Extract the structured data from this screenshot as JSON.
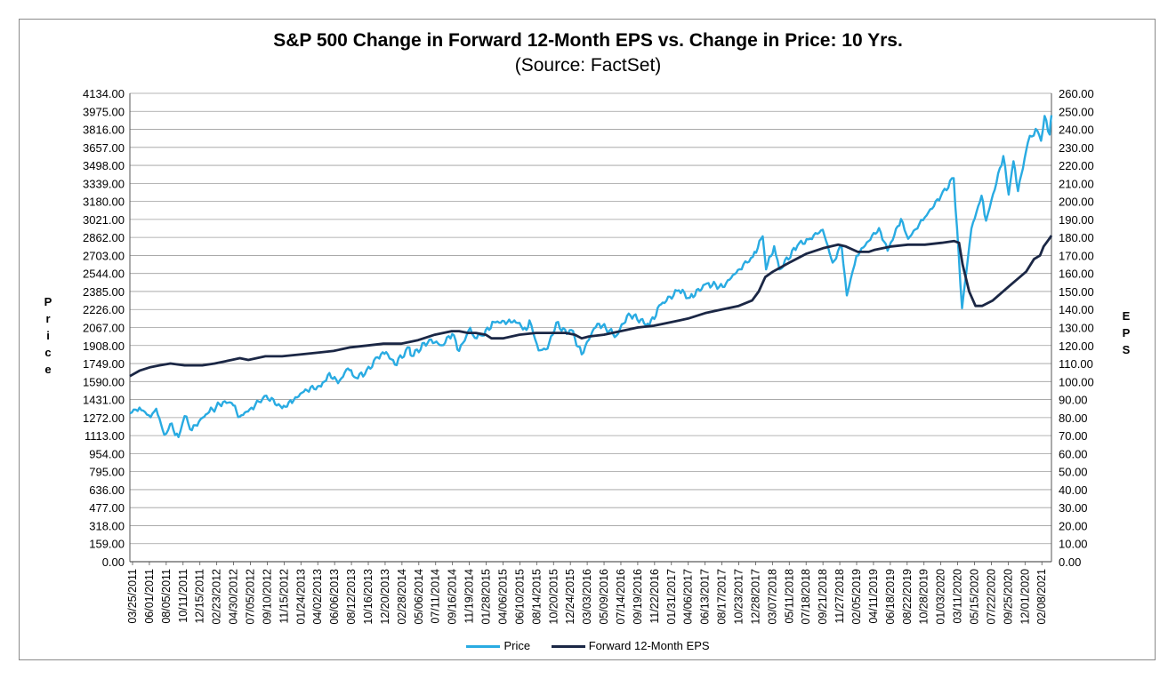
{
  "chart_data": {
    "type": "line",
    "title": "S&P 500 Change in Forward 12-Month EPS vs. Change in Price: 10 Yrs.",
    "subtitle": "(Source: FactSet)",
    "y_left": {
      "label": "Price",
      "ylim": [
        0,
        4134
      ],
      "ticks": [
        "0.00",
        "159.00",
        "318.00",
        "477.00",
        "636.00",
        "795.00",
        "954.00",
        "1113.00",
        "1272.00",
        "1431.00",
        "1590.00",
        "1749.00",
        "1908.00",
        "2067.00",
        "2226.00",
        "2385.00",
        "2544.00",
        "2703.00",
        "2862.00",
        "3021.00",
        "3180.00",
        "3339.00",
        "3498.00",
        "3657.00",
        "3816.00",
        "3975.00",
        "4134.00"
      ]
    },
    "y_right": {
      "label": "EPS",
      "ylim": [
        0,
        260
      ],
      "ticks": [
        "0.00",
        "10.00",
        "20.00",
        "30.00",
        "40.00",
        "50.00",
        "60.00",
        "70.00",
        "80.00",
        "90.00",
        "100.00",
        "110.00",
        "120.00",
        "130.00",
        "140.00",
        "150.00",
        "160.00",
        "170.00",
        "180.00",
        "190.00",
        "200.00",
        "210.00",
        "220.00",
        "230.00",
        "240.00",
        "250.00",
        "260.00"
      ]
    },
    "x_tick_labels": [
      "03/25/2011",
      "06/01/2011",
      "08/05/2011",
      "10/11/2011",
      "12/15/2011",
      "02/23/2012",
      "04/30/2012",
      "07/05/2012",
      "09/10/2012",
      "11/15/2012",
      "01/24/2013",
      "04/02/2013",
      "06/06/2013",
      "08/12/2013",
      "10/16/2013",
      "12/20/2013",
      "02/28/2014",
      "05/06/2014",
      "07/11/2014",
      "09/16/2014",
      "11/19/2014",
      "01/28/2015",
      "04/06/2015",
      "06/10/2015",
      "08/14/2015",
      "10/20/2015",
      "12/24/2015",
      "03/03/2016",
      "05/09/2016",
      "07/14/2016",
      "09/19/2016",
      "11/22/2016",
      "01/31/2017",
      "04/06/2017",
      "06/13/2017",
      "08/17/2017",
      "10/23/2017",
      "12/28/2017",
      "03/07/2018",
      "05/11/2018",
      "07/18/2018",
      "09/21/2018",
      "11/27/2018",
      "02/05/2019",
      "04/11/2019",
      "06/18/2019",
      "08/22/2019",
      "10/28/2019",
      "01/03/2020",
      "03/11/2020",
      "05/15/2020",
      "07/22/2020",
      "09/25/2020",
      "12/01/2020",
      "02/08/2021"
    ],
    "grid": true,
    "legend_position": "bottom",
    "series": [
      {
        "name": "Price",
        "axis": "left",
        "color": "#29abe2",
        "points": [
          [
            "03/25/2011",
            1310
          ],
          [
            "05/02/2011",
            1360
          ],
          [
            "06/15/2011",
            1275
          ],
          [
            "07/07/2011",
            1350
          ],
          [
            "08/08/2011",
            1120
          ],
          [
            "08/31/2011",
            1215
          ],
          [
            "10/03/2011",
            1100
          ],
          [
            "10/27/2011",
            1285
          ],
          [
            "11/25/2011",
            1160
          ],
          [
            "12/30/2011",
            1260
          ],
          [
            "02/01/2012",
            1320
          ],
          [
            "03/27/2012",
            1410
          ],
          [
            "04/30/2012",
            1400
          ],
          [
            "06/01/2012",
            1280
          ],
          [
            "07/10/2012",
            1345
          ],
          [
            "09/14/2012",
            1465
          ],
          [
            "11/15/2012",
            1355
          ],
          [
            "12/31/2012",
            1425
          ],
          [
            "02/15/2013",
            1520
          ],
          [
            "04/18/2013",
            1545
          ],
          [
            "05/21/2013",
            1665
          ],
          [
            "06/24/2013",
            1575
          ],
          [
            "08/02/2013",
            1705
          ],
          [
            "08/27/2013",
            1630
          ],
          [
            "10/08/2013",
            1655
          ],
          [
            "11/27/2013",
            1805
          ],
          [
            "12/31/2013",
            1850
          ],
          [
            "02/03/2014",
            1740
          ],
          [
            "04/02/2014",
            1890
          ],
          [
            "04/11/2014",
            1815
          ],
          [
            "06/20/2014",
            1960
          ],
          [
            "08/07/2014",
            1910
          ],
          [
            "09/18/2014",
            2010
          ],
          [
            "10/15/2014",
            1860
          ],
          [
            "11/28/2014",
            2065
          ],
          [
            "12/16/2014",
            1975
          ],
          [
            "01/15/2015",
            1995
          ],
          [
            "03/02/2015",
            2115
          ],
          [
            "04/24/2015",
            2115
          ],
          [
            "05/21/2015",
            2130
          ],
          [
            "07/08/2015",
            2045
          ],
          [
            "07/20/2015",
            2130
          ],
          [
            "08/25/2015",
            1865
          ],
          [
            "09/29/2015",
            1880
          ],
          [
            "11/03/2015",
            2110
          ],
          [
            "12/14/2015",
            2010
          ],
          [
            "01/01/2016",
            2045
          ],
          [
            "02/11/2016",
            1830
          ],
          [
            "03/31/2016",
            2060
          ],
          [
            "04/20/2016",
            2100
          ],
          [
            "06/27/2016",
            1995
          ],
          [
            "08/15/2016",
            2190
          ],
          [
            "11/04/2016",
            2085
          ],
          [
            "12/20/2016",
            2270
          ],
          [
            "03/01/2017",
            2395
          ],
          [
            "04/13/2017",
            2330
          ],
          [
            "06/19/2017",
            2455
          ],
          [
            "08/21/2017",
            2425
          ],
          [
            "10/20/2017",
            2575
          ],
          [
            "12/18/2017",
            2690
          ],
          [
            "01/26/2018",
            2872
          ],
          [
            "02/08/2018",
            2580
          ],
          [
            "03/12/2018",
            2785
          ],
          [
            "04/02/2018",
            2580
          ],
          [
            "06/12/2018",
            2790
          ],
          [
            "07/25/2018",
            2845
          ],
          [
            "09/20/2018",
            2930
          ],
          [
            "10/29/2018",
            2640
          ],
          [
            "12/03/2018",
            2790
          ],
          [
            "12/24/2018",
            2350
          ],
          [
            "01/31/2019",
            2700
          ],
          [
            "04/30/2019",
            2945
          ],
          [
            "06/03/2019",
            2745
          ],
          [
            "07/26/2019",
            3025
          ],
          [
            "08/23/2019",
            2850
          ],
          [
            "10/28/2019",
            3040
          ],
          [
            "12/31/2019",
            3230
          ],
          [
            "02/19/2020",
            3386
          ],
          [
            "03/23/2020",
            2237
          ],
          [
            "04/29/2020",
            2940
          ],
          [
            "06/08/2020",
            3230
          ],
          [
            "06/26/2020",
            3010
          ],
          [
            "09/02/2020",
            3580
          ],
          [
            "09/23/2020",
            3240
          ],
          [
            "10/12/2020",
            3535
          ],
          [
            "10/30/2020",
            3270
          ],
          [
            "12/08/2020",
            3700
          ],
          [
            "01/08/2021",
            3820
          ],
          [
            "01/29/2021",
            3715
          ],
          [
            "02/12/2021",
            3935
          ],
          [
            "03/04/2021",
            3770
          ],
          [
            "03/11/2021",
            3940
          ]
        ]
      },
      {
        "name": "Forward 12-Month EPS",
        "axis": "right",
        "color": "#1b2745",
        "points": [
          [
            "03/25/2011",
            103
          ],
          [
            "05/02/2011",
            106
          ],
          [
            "06/15/2011",
            108
          ],
          [
            "07/20/2011",
            109
          ],
          [
            "09/01/2011",
            110
          ],
          [
            "10/27/2011",
            109
          ],
          [
            "01/05/2012",
            109
          ],
          [
            "02/23/2012",
            110
          ],
          [
            "04/30/2012",
            112
          ],
          [
            "06/01/2012",
            113
          ],
          [
            "07/05/2012",
            112
          ],
          [
            "09/10/2012",
            114
          ],
          [
            "11/15/2012",
            114
          ],
          [
            "01/24/2013",
            115
          ],
          [
            "04/02/2013",
            116
          ],
          [
            "06/06/2013",
            117
          ],
          [
            "08/12/2013",
            119
          ],
          [
            "10/16/2013",
            120
          ],
          [
            "12/20/2013",
            121
          ],
          [
            "02/28/2014",
            121
          ],
          [
            "05/06/2014",
            123
          ],
          [
            "07/11/2014",
            126
          ],
          [
            "09/16/2014",
            128
          ],
          [
            "10/15/2014",
            128
          ],
          [
            "11/19/2014",
            127
          ],
          [
            "12/20/2014",
            127
          ],
          [
            "01/28/2015",
            126
          ],
          [
            "02/20/2015",
            124
          ],
          [
            "04/06/2015",
            124
          ],
          [
            "06/10/2015",
            126
          ],
          [
            "08/14/2015",
            127
          ],
          [
            "10/20/2015",
            127
          ],
          [
            "12/10/2015",
            127
          ],
          [
            "01/15/2016",
            126
          ],
          [
            "02/11/2016",
            124
          ],
          [
            "03/10/2016",
            125
          ],
          [
            "05/09/2016",
            126
          ],
          [
            "07/14/2016",
            128
          ],
          [
            "09/19/2016",
            130
          ],
          [
            "11/22/2016",
            131
          ],
          [
            "01/31/2017",
            133
          ],
          [
            "04/06/2017",
            135
          ],
          [
            "06/13/2017",
            138
          ],
          [
            "08/17/2017",
            140
          ],
          [
            "10/23/2017",
            142
          ],
          [
            "12/15/2017",
            145
          ],
          [
            "01/10/2018",
            150
          ],
          [
            "02/05/2018",
            158
          ],
          [
            "03/07/2018",
            161
          ],
          [
            "05/11/2018",
            166
          ],
          [
            "07/18/2018",
            171
          ],
          [
            "09/21/2018",
            174
          ],
          [
            "11/20/2018",
            176
          ],
          [
            "12/20/2018",
            175
          ],
          [
            "02/05/2019",
            172
          ],
          [
            "03/20/2019",
            172
          ],
          [
            "04/11/2019",
            173
          ],
          [
            "06/18/2019",
            175
          ],
          [
            "08/22/2019",
            176
          ],
          [
            "10/28/2019",
            176
          ],
          [
            "01/03/2020",
            177
          ],
          [
            "02/20/2020",
            178
          ],
          [
            "03/11/2020",
            177
          ],
          [
            "03/25/2020",
            165
          ],
          [
            "04/20/2020",
            150
          ],
          [
            "05/15/2020",
            142
          ],
          [
            "06/10/2020",
            142
          ],
          [
            "07/22/2020",
            145
          ],
          [
            "09/25/2020",
            153
          ],
          [
            "12/01/2020",
            161
          ],
          [
            "01/01/2021",
            168
          ],
          [
            "01/25/2021",
            170
          ],
          [
            "02/08/2021",
            175
          ],
          [
            "03/01/2021",
            179
          ],
          [
            "03/11/2021",
            181
          ]
        ]
      }
    ]
  }
}
